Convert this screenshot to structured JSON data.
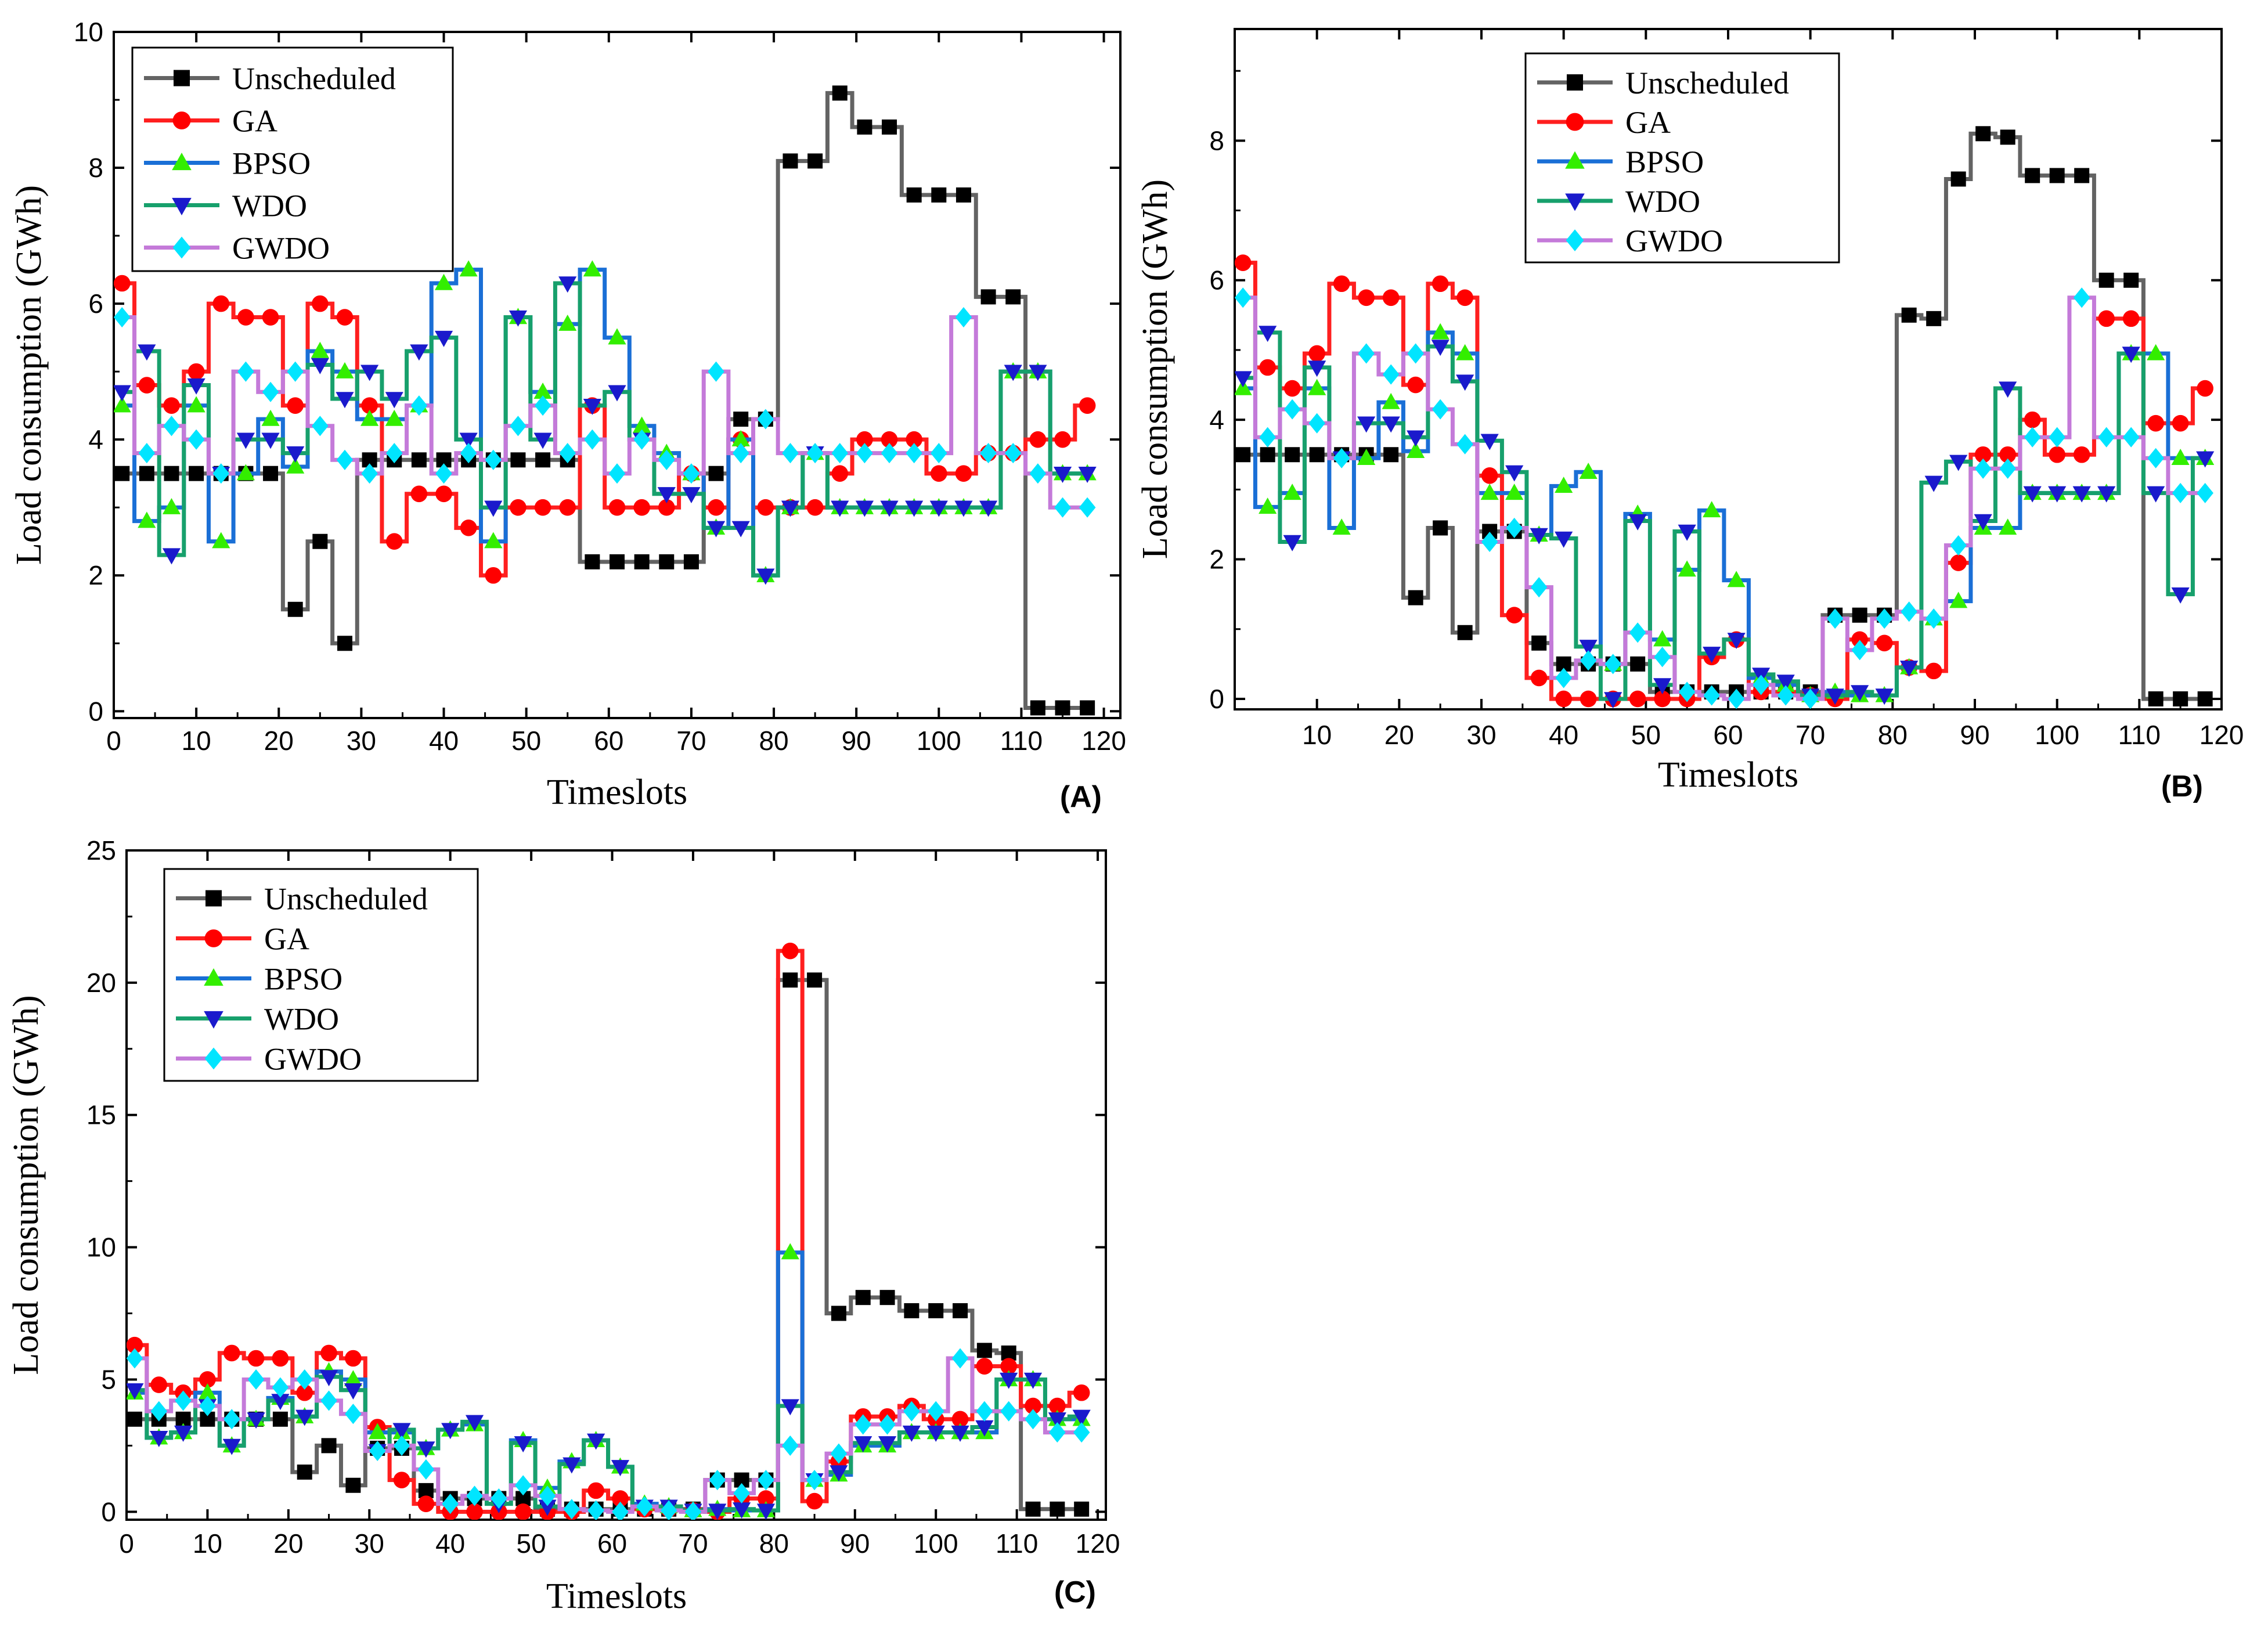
{
  "colors": {
    "Unscheduled": "#636363",
    "GA": "#ff1f1f",
    "BPSO": "#1a6fd6",
    "WDO": "#17a06c",
    "GWDO": "#c47ad9"
  },
  "marker_colors": {
    "Unscheduled": "#000000",
    "GA": "#ff0000",
    "BPSO": "#33ee00",
    "WDO": "#1a1acc",
    "GWDO": "#00e5ff"
  },
  "markers": {
    "Unscheduled": "square",
    "GA": "circle",
    "BPSO": "triangle-up",
    "WDO": "triangle-down",
    "GWDO": "diamond"
  },
  "chart_data": [
    {
      "type": "line",
      "panel_label": "(A)",
      "xlabel": "Timeslots",
      "ylabel": "Load consumption (GWh)",
      "xlim": [
        0,
        122
      ],
      "ylim": [
        -0.1,
        10
      ],
      "xticks": [
        0,
        10,
        20,
        30,
        40,
        50,
        60,
        70,
        80,
        90,
        100,
        110,
        120
      ],
      "yticks": [
        0,
        2,
        4,
        6,
        8,
        10
      ],
      "legend": [
        "Unscheduled",
        "GA",
        "BPSO",
        "WDO",
        "GWDO"
      ],
      "legend_position": "top-left",
      "x": [
        1,
        4,
        7,
        10,
        13,
        16,
        19,
        22,
        25,
        28,
        31,
        34,
        37,
        40,
        43,
        46,
        49,
        52,
        55,
        58,
        61,
        64,
        67,
        70,
        73,
        76,
        79,
        82,
        85,
        88,
        91,
        94,
        97,
        100,
        103,
        106,
        109,
        112,
        115,
        118
      ],
      "series": [
        {
          "name": "Unscheduled",
          "values": [
            3.5,
            3.5,
            3.5,
            3.5,
            3.5,
            3.5,
            3.5,
            1.5,
            2.5,
            1.0,
            3.7,
            3.7,
            3.7,
            3.7,
            3.7,
            3.7,
            3.7,
            3.7,
            3.7,
            2.2,
            2.2,
            2.2,
            2.2,
            2.2,
            3.5,
            4.3,
            4.3,
            8.1,
            8.1,
            9.1,
            8.6,
            8.6,
            7.6,
            7.6,
            7.6,
            6.1,
            6.1,
            0.05,
            0.05,
            0.05
          ]
        },
        {
          "name": "GA",
          "values": [
            6.3,
            4.8,
            4.5,
            5.0,
            6.0,
            5.8,
            5.8,
            4.5,
            6.0,
            5.8,
            4.5,
            2.5,
            3.2,
            3.2,
            2.7,
            2.0,
            3.0,
            3.0,
            3.0,
            4.5,
            3.0,
            3.0,
            3.0,
            3.5,
            3.0,
            4.0,
            3.0,
            3.0,
            3.0,
            3.5,
            4.0,
            4.0,
            4.0,
            3.5,
            3.5,
            3.8,
            3.8,
            4.0,
            4.0,
            4.5
          ]
        },
        {
          "name": "BPSO",
          "values": [
            4.5,
            2.8,
            3.0,
            4.5,
            2.5,
            3.5,
            4.3,
            3.6,
            5.3,
            5.0,
            4.3,
            4.3,
            4.5,
            6.3,
            6.5,
            2.5,
            5.8,
            4.7,
            5.7,
            6.5,
            5.5,
            4.2,
            3.8,
            3.5,
            2.7,
            4.0,
            2.0,
            3.0,
            3.8,
            3.0,
            3.0,
            3.0,
            3.0,
            3.0,
            3.0,
            3.0,
            5.0,
            5.0,
            3.5,
            3.5
          ]
        },
        {
          "name": "WDO",
          "values": [
            4.7,
            5.3,
            2.3,
            4.8,
            3.5,
            4.0,
            4.0,
            3.8,
            5.1,
            4.6,
            5.0,
            4.6,
            5.3,
            5.5,
            4.0,
            3.0,
            5.8,
            4.0,
            6.3,
            4.5,
            4.7,
            4.0,
            3.2,
            3.2,
            2.7,
            2.7,
            2.0,
            3.0,
            3.8,
            3.0,
            3.0,
            3.0,
            3.0,
            3.0,
            3.0,
            3.0,
            5.0,
            5.0,
            3.5,
            3.5
          ]
        },
        {
          "name": "GWDO",
          "values": [
            5.8,
            3.8,
            4.2,
            4.0,
            3.5,
            5.0,
            4.7,
            5.0,
            4.2,
            3.7,
            3.5,
            3.8,
            4.5,
            3.5,
            3.8,
            3.7,
            4.2,
            4.5,
            3.8,
            4.0,
            3.5,
            4.0,
            3.7,
            3.5,
            5.0,
            3.8,
            4.3,
            3.8,
            3.8,
            3.8,
            3.8,
            3.8,
            3.8,
            3.8,
            5.8,
            3.8,
            3.8,
            3.5,
            3.0,
            3.0
          ]
        }
      ]
    },
    {
      "type": "line",
      "panel_label": "(B)",
      "xlabel": "Timeslots",
      "ylabel": "Load consumption (GWh)",
      "xlim": [
        0,
        120
      ],
      "ylim": [
        -0.15,
        9.6
      ],
      "xticks": [
        10,
        20,
        30,
        40,
        50,
        60,
        70,
        80,
        90,
        100,
        110,
        120
      ],
      "yticks": [
        0,
        2,
        4,
        6,
        8
      ],
      "legend": [
        "Unscheduled",
        "GA",
        "BPSO",
        "WDO",
        "GWDO"
      ],
      "legend_position": "top-center",
      "x": [
        1,
        4,
        7,
        10,
        13,
        16,
        19,
        22,
        25,
        28,
        31,
        34,
        37,
        40,
        43,
        46,
        49,
        52,
        55,
        58,
        61,
        64,
        67,
        70,
        73,
        76,
        79,
        82,
        85,
        88,
        91,
        94,
        97,
        100,
        103,
        106,
        109,
        112,
        115,
        118
      ],
      "series": [
        {
          "name": "Unscheduled",
          "values": [
            3.5,
            3.5,
            3.5,
            3.5,
            3.5,
            3.5,
            3.5,
            1.45,
            2.45,
            0.95,
            2.4,
            2.4,
            0.8,
            0.5,
            0.5,
            0.5,
            0.5,
            0.1,
            0.1,
            0.1,
            0.1,
            0.1,
            0.1,
            0.1,
            1.2,
            1.2,
            1.2,
            5.5,
            5.45,
            7.45,
            8.1,
            8.05,
            7.5,
            7.5,
            7.5,
            6.0,
            6.0,
            0.0,
            0.0,
            0.0
          ]
        },
        {
          "name": "GA",
          "values": [
            6.25,
            4.75,
            4.45,
            4.95,
            5.95,
            5.75,
            5.75,
            4.5,
            5.95,
            5.75,
            3.2,
            1.2,
            0.3,
            0.0,
            0.0,
            0.0,
            0.0,
            0.0,
            0.0,
            0.6,
            0.85,
            0.1,
            0.1,
            0.05,
            0.0,
            0.85,
            0.8,
            0.45,
            0.4,
            1.95,
            3.5,
            3.5,
            4.0,
            3.5,
            3.5,
            5.45,
            5.45,
            3.95,
            3.95,
            4.45
          ]
        },
        {
          "name": "BPSO",
          "values": [
            4.45,
            2.75,
            2.95,
            4.45,
            2.45,
            3.45,
            4.25,
            3.55,
            5.25,
            4.95,
            2.95,
            2.95,
            2.35,
            3.05,
            3.25,
            0.5,
            2.65,
            0.85,
            1.85,
            2.7,
            1.7,
            0.3,
            0.2,
            0.05,
            0.1,
            0.05,
            0.05,
            0.45,
            1.15,
            1.4,
            2.45,
            2.45,
            2.95,
            2.95,
            2.95,
            2.95,
            4.95,
            4.95,
            3.45,
            3.45
          ]
        },
        {
          "name": "WDO",
          "values": [
            4.6,
            5.25,
            2.25,
            4.75,
            3.45,
            3.95,
            3.95,
            3.75,
            5.05,
            4.55,
            3.7,
            3.25,
            2.35,
            2.3,
            0.75,
            0.0,
            2.55,
            0.2,
            2.4,
            0.65,
            0.85,
            0.35,
            0.25,
            0.05,
            0.05,
            0.1,
            0.05,
            0.45,
            3.1,
            3.4,
            2.55,
            4.45,
            2.95,
            2.95,
            2.95,
            2.95,
            4.95,
            2.95,
            1.5,
            3.45
          ]
        },
        {
          "name": "GWDO",
          "values": [
            5.75,
            3.75,
            4.15,
            3.95,
            3.45,
            4.95,
            4.65,
            4.95,
            4.15,
            3.65,
            2.25,
            2.45,
            1.6,
            0.3,
            0.55,
            0.5,
            0.95,
            0.6,
            0.1,
            0.05,
            0.0,
            0.2,
            0.05,
            0.0,
            1.15,
            0.7,
            1.15,
            1.25,
            1.15,
            2.2,
            3.3,
            3.3,
            3.75,
            3.75,
            5.75,
            3.75,
            3.75,
            3.45,
            2.95,
            2.95
          ]
        }
      ]
    },
    {
      "type": "line",
      "panel_label": "(C)",
      "xlabel": "Timeslots",
      "ylabel": "Load consumption (GWh)",
      "xlim": [
        0,
        121
      ],
      "ylim": [
        -0.3,
        25
      ],
      "xticks": [
        0,
        10,
        20,
        30,
        40,
        50,
        60,
        70,
        80,
        90,
        100,
        110,
        120
      ],
      "yticks": [
        0,
        5,
        10,
        15,
        20,
        25
      ],
      "legend": [
        "Unscheduled",
        "GA",
        "BPSO",
        "WDO",
        "GWDO"
      ],
      "legend_position": "top-left",
      "x": [
        1,
        4,
        7,
        10,
        13,
        16,
        19,
        22,
        25,
        28,
        31,
        34,
        37,
        40,
        43,
        46,
        49,
        52,
        55,
        58,
        61,
        64,
        67,
        70,
        73,
        76,
        79,
        82,
        85,
        88,
        91,
        94,
        97,
        100,
        103,
        106,
        109,
        112,
        115,
        118
      ],
      "series": [
        {
          "name": "Unscheduled",
          "values": [
            3.5,
            3.5,
            3.5,
            3.5,
            3.5,
            3.5,
            3.5,
            1.5,
            2.5,
            1.0,
            2.4,
            2.4,
            0.8,
            0.5,
            0.5,
            0.5,
            0.5,
            0.1,
            0.1,
            0.1,
            0.1,
            0.1,
            0.1,
            0.1,
            1.2,
            1.2,
            1.2,
            20.1,
            20.1,
            7.5,
            8.1,
            8.1,
            7.6,
            7.6,
            7.6,
            6.1,
            6.0,
            0.1,
            0.1,
            0.1
          ]
        },
        {
          "name": "GA",
          "values": [
            6.3,
            4.8,
            4.5,
            5.0,
            6.0,
            5.8,
            5.8,
            4.5,
            6.0,
            5.8,
            3.2,
            1.2,
            0.3,
            0.0,
            0.0,
            0.0,
            0.0,
            0.0,
            0.0,
            0.8,
            0.5,
            0.1,
            0.1,
            0.05,
            0.0,
            0.5,
            0.5,
            21.2,
            0.4,
            1.9,
            3.6,
            3.6,
            4.0,
            3.5,
            3.5,
            5.5,
            5.5,
            4.0,
            4.0,
            4.5
          ]
        },
        {
          "name": "BPSO",
          "values": [
            4.5,
            2.8,
            3.0,
            4.5,
            2.5,
            3.5,
            4.3,
            3.6,
            5.3,
            5.0,
            3.0,
            3.0,
            2.4,
            3.1,
            3.3,
            0.5,
            2.7,
            0.9,
            1.9,
            2.7,
            1.7,
            0.3,
            0.2,
            0.05,
            0.1,
            0.05,
            0.05,
            9.8,
            1.2,
            1.4,
            2.5,
            2.5,
            3.0,
            3.0,
            3.0,
            3.0,
            5.0,
            5.0,
            3.5,
            3.5
          ]
        },
        {
          "name": "WDO",
          "values": [
            4.6,
            2.8,
            3.0,
            4.0,
            2.5,
            3.5,
            4.2,
            3.6,
            5.1,
            4.6,
            2.3,
            3.1,
            2.4,
            3.1,
            3.4,
            0.3,
            2.6,
            0.2,
            1.8,
            2.7,
            1.7,
            0.2,
            0.2,
            0.05,
            0.05,
            0.1,
            0.05,
            4.0,
            1.2,
            1.5,
            2.6,
            2.6,
            3.0,
            3.0,
            3.0,
            3.2,
            5.0,
            5.0,
            3.5,
            3.6
          ]
        },
        {
          "name": "GWDO",
          "values": [
            5.8,
            3.8,
            4.2,
            4.0,
            3.5,
            5.0,
            4.7,
            5.0,
            4.2,
            3.7,
            2.3,
            2.5,
            1.6,
            0.3,
            0.6,
            0.5,
            1.0,
            0.6,
            0.1,
            0.05,
            0.0,
            0.2,
            0.05,
            0.0,
            1.2,
            0.7,
            1.2,
            2.5,
            1.2,
            2.2,
            3.3,
            3.3,
            3.8,
            3.8,
            5.8,
            3.8,
            3.8,
            3.5,
            3.0,
            3.0
          ]
        }
      ]
    }
  ]
}
